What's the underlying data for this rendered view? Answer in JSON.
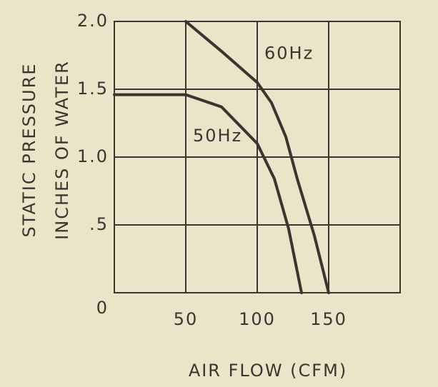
{
  "chart_data": {
    "type": "line",
    "x_label": "AIR FLOW (CFM)",
    "y_labels": [
      "STATIC PRESSURE",
      "INCHES OF WATER"
    ],
    "xlim": [
      0,
      200
    ],
    "xticks": [
      50,
      100,
      150
    ],
    "ylim": [
      0,
      2
    ],
    "yticks": [
      0,
      {
        "value": 0.5,
        "label": ".5"
      },
      {
        "value": 1,
        "label": "1.0"
      },
      1.5,
      {
        "value": 2,
        "label": "2.0"
      }
    ],
    "grid": true,
    "series": [
      {
        "name": "60Hz",
        "color": "#3b3430",
        "x": [
          50,
          75,
          100,
          110,
          120,
          128,
          140,
          150
        ],
        "values": [
          2.0,
          1.78,
          1.55,
          1.4,
          1.15,
          0.84,
          0.42,
          0
        ]
      },
      {
        "name": "50Hz",
        "color": "#3b3430",
        "x": [
          0,
          50,
          75,
          100,
          112,
          122,
          131
        ],
        "values": [
          1.46,
          1.46,
          1.37,
          1.1,
          0.84,
          0.47,
          0
        ]
      }
    ]
  }
}
